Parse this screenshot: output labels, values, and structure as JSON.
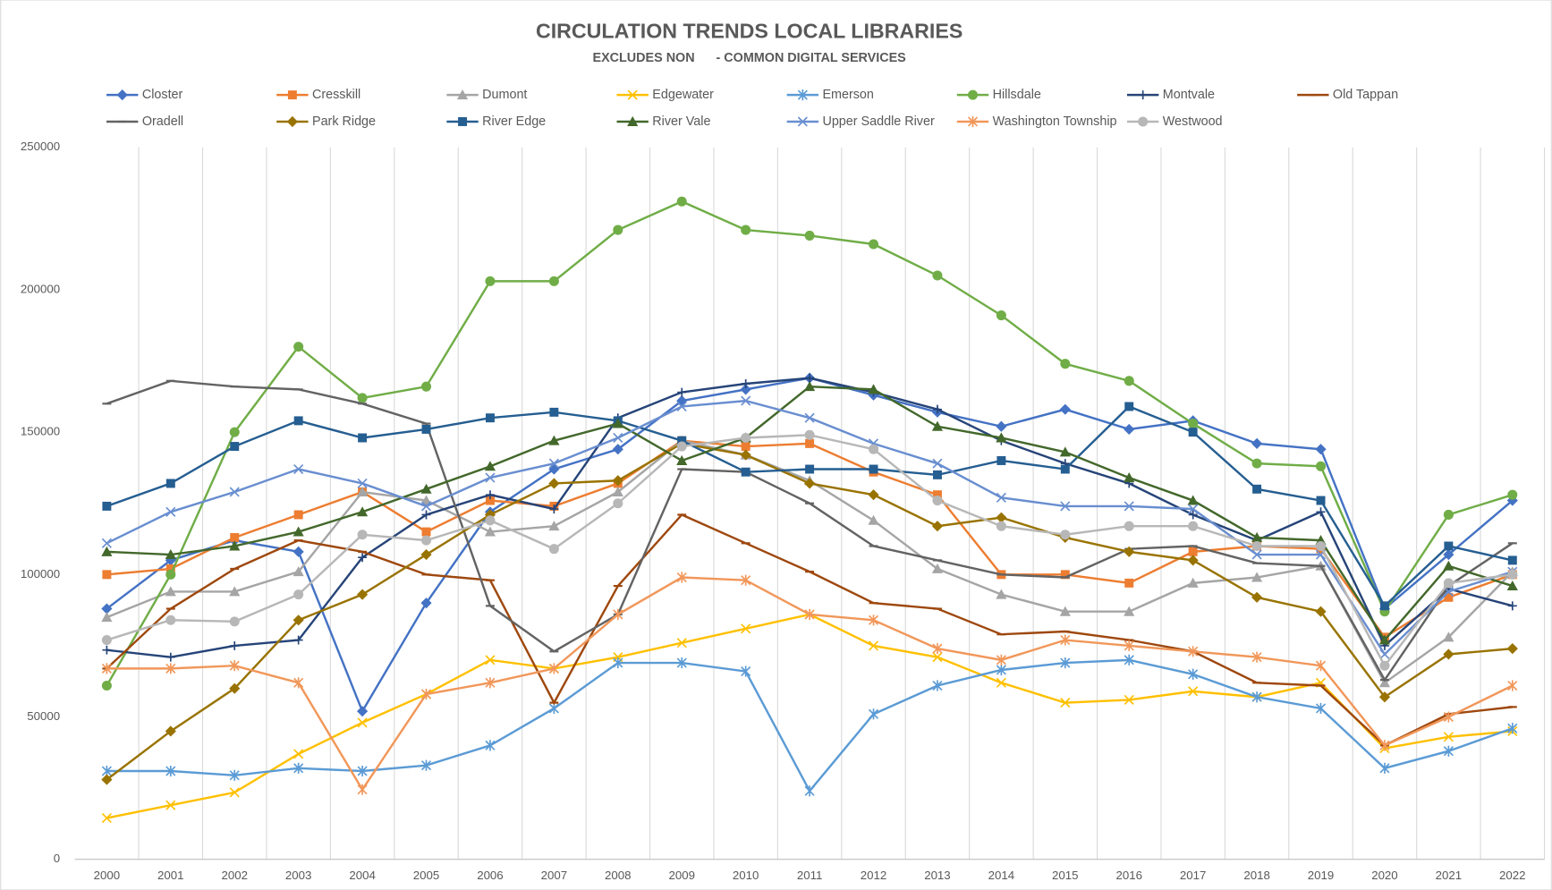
{
  "chart_data": {
    "type": "line",
    "title": "CIRCULATION TRENDS LOCAL LIBRARIES",
    "subtitle": "EXCLUDES NON      - COMMON DIGITAL SERVICES",
    "categories": [
      "2000",
      "2001",
      "2002",
      "2003",
      "2004",
      "2005",
      "2006",
      "2007",
      "2008",
      "2009",
      "2010",
      "2011",
      "2012",
      "2013",
      "2014",
      "2015",
      "2016",
      "2017",
      "2018",
      "2019",
      "2020",
      "2021",
      "2022"
    ],
    "ylim": [
      0,
      250000
    ],
    "yticks": [
      0,
      50000,
      100000,
      150000,
      200000,
      250000
    ],
    "grid": "vertical",
    "legend": "top",
    "series": [
      {
        "name": "Closter",
        "color": "#4472C4",
        "marker": "diamond",
        "values": [
          88000,
          105000,
          112000,
          108000,
          52000,
          90000,
          122000,
          137000,
          144000,
          161000,
          165000,
          169000,
          163000,
          157000,
          152000,
          158000,
          151000,
          154000,
          146000,
          144000,
          88000,
          107000,
          126000
        ]
      },
      {
        "name": "Cresskill",
        "color": "#ED7D31",
        "marker": "square",
        "values": [
          100000,
          102000,
          113000,
          121000,
          129000,
          115000,
          126000,
          124000,
          132000,
          147000,
          145000,
          146000,
          136000,
          128000,
          100000,
          100000,
          97000,
          108000,
          110000,
          109000,
          78000,
          92000,
          100000
        ]
      },
      {
        "name": "Dumont",
        "color": "#A5A5A5",
        "marker": "triangle",
        "values": [
          85000,
          94000,
          94000,
          101000,
          129000,
          126000,
          115000,
          117000,
          129000,
          147000,
          142000,
          133000,
          119000,
          102000,
          93000,
          87000,
          87000,
          97000,
          99000,
          103000,
          62000,
          78000,
          101000
        ]
      },
      {
        "name": "Edgewater",
        "color": "#FFC000",
        "marker": "x",
        "values": [
          14500,
          19000,
          23500,
          37000,
          48000,
          58000,
          70000,
          67000,
          71000,
          76000,
          81000,
          86000,
          75000,
          71000,
          62000,
          55000,
          56000,
          59000,
          57000,
          62000,
          39000,
          43000,
          45000
        ]
      },
      {
        "name": "Emerson",
        "color": "#5B9BD5",
        "marker": "asterisk",
        "values": [
          31000,
          31000,
          29500,
          32000,
          31000,
          33000,
          40000,
          53000,
          69000,
          69000,
          66000,
          24000,
          51000,
          61000,
          66500,
          69000,
          70000,
          65000,
          57000,
          53000,
          32000,
          38000,
          46000
        ]
      },
      {
        "name": "Hillsdale",
        "color": "#70AD47",
        "marker": "circle",
        "values": [
          61000,
          100000,
          150000,
          180000,
          162000,
          166000,
          203000,
          203000,
          221000,
          231000,
          221000,
          219000,
          216000,
          205000,
          191000,
          174000,
          168000,
          153000,
          139000,
          138000,
          87000,
          121000,
          128000
        ]
      },
      {
        "name": "Montvale",
        "color": "#264478",
        "marker": "plus",
        "values": [
          73500,
          71000,
          75000,
          77000,
          106000,
          121000,
          128000,
          123000,
          155000,
          164000,
          167000,
          169000,
          164000,
          158000,
          147000,
          139000,
          132000,
          121000,
          112000,
          122000,
          75000,
          95000,
          89000
        ]
      },
      {
        "name": "Old Tappan",
        "color": "#9E480E",
        "marker": "dash",
        "values": [
          67000,
          88000,
          102000,
          112000,
          108000,
          100000,
          98000,
          55000,
          96000,
          121000,
          111000,
          101000,
          90000,
          88000,
          79000,
          80000,
          77000,
          73000,
          62000,
          61000,
          40000,
          51000,
          53500
        ]
      },
      {
        "name": "Oradell",
        "color": "#636363",
        "marker": "dash",
        "values": [
          160000,
          168000,
          166000,
          165000,
          160000,
          153000,
          89000,
          73000,
          86000,
          137000,
          136000,
          125000,
          110000,
          105000,
          100000,
          99000,
          109000,
          110000,
          104000,
          103000,
          63000,
          96000,
          111000
        ]
      },
      {
        "name": "Park Ridge",
        "color": "#997300",
        "marker": "diamond",
        "values": [
          28000,
          45000,
          60000,
          84000,
          93000,
          107000,
          121000,
          132000,
          133000,
          146000,
          142000,
          132000,
          128000,
          117000,
          120000,
          113000,
          108000,
          105000,
          92000,
          87000,
          57000,
          72000,
          74000
        ]
      },
      {
        "name": "River Edge",
        "color": "#255E91",
        "marker": "square",
        "values": [
          124000,
          132000,
          145000,
          154000,
          148000,
          151000,
          155000,
          157000,
          154000,
          147000,
          136000,
          137000,
          137000,
          135000,
          140000,
          137000,
          159000,
          150000,
          130000,
          126000,
          89000,
          110000,
          105000
        ]
      },
      {
        "name": "River Vale",
        "color": "#43682B",
        "marker": "triangle",
        "values": [
          108000,
          107000,
          110000,
          115000,
          122000,
          130000,
          138000,
          147000,
          153000,
          140000,
          148000,
          166000,
          165000,
          152000,
          148000,
          143000,
          134000,
          126000,
          113000,
          112000,
          77000,
          103000,
          96000
        ]
      },
      {
        "name": "Upper Saddle River",
        "color": "#698ED0",
        "marker": "x",
        "values": [
          111000,
          122000,
          129000,
          137000,
          132000,
          124000,
          134000,
          139000,
          148000,
          159000,
          161000,
          155000,
          146000,
          139000,
          127000,
          124000,
          124000,
          123000,
          107000,
          107000,
          72000,
          94000,
          101000
        ]
      },
      {
        "name": "Washington Township",
        "color": "#F1975A",
        "marker": "asterisk",
        "values": [
          67000,
          67000,
          68000,
          62000,
          24500,
          58000,
          62000,
          67000,
          86000,
          99000,
          98000,
          86000,
          84000,
          74000,
          70000,
          77000,
          75000,
          73000,
          71000,
          68000,
          40000,
          50000,
          61000
        ]
      },
      {
        "name": "Westwood",
        "color": "#B7B7B7",
        "marker": "circle",
        "values": [
          77000,
          84000,
          83500,
          93000,
          114000,
          112000,
          119000,
          109000,
          125000,
          145000,
          148000,
          149000,
          144000,
          126000,
          117000,
          114000,
          117000,
          117000,
          110000,
          110000,
          68000,
          97000,
          100000
        ]
      }
    ]
  }
}
